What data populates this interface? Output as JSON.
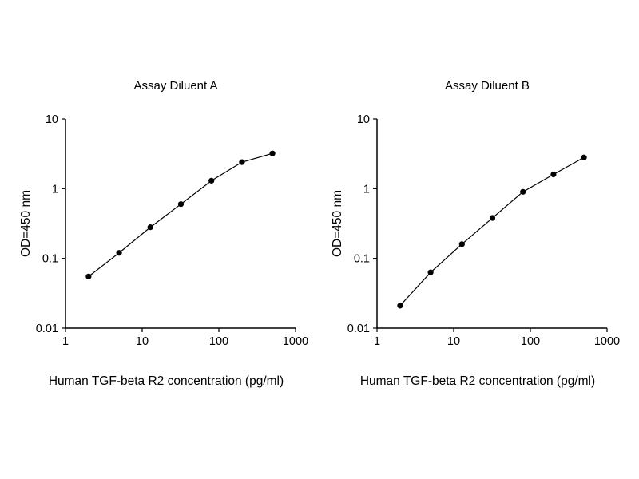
{
  "page": {
    "background": "#ffffff",
    "foreground": "#000000"
  },
  "chart_data": [
    {
      "type": "line",
      "title": "Assay Diluent A",
      "xlabel": "Human TGF-beta R2 concentration (pg/ml)",
      "ylabel": "OD=450 nm",
      "xscale": "log",
      "yscale": "log",
      "xlim": [
        1,
        1000
      ],
      "ylim": [
        0.01,
        10
      ],
      "xticks": [
        1,
        10,
        100,
        1000
      ],
      "yticks": [
        0.01,
        0.1,
        1,
        10
      ],
      "grid": false,
      "legend": "none",
      "x": [
        2,
        5,
        12.8,
        32,
        80,
        200,
        500
      ],
      "y": [
        0.055,
        0.12,
        0.28,
        0.6,
        1.3,
        2.4,
        3.2
      ],
      "line_color": "#000000",
      "marker_color": "#000000",
      "marker": "circle"
    },
    {
      "type": "line",
      "title": "Assay Diluent B",
      "xlabel": "Human TGF-beta R2 concentration (pg/ml)",
      "ylabel": "OD=450 nm",
      "xscale": "log",
      "yscale": "log",
      "xlim": [
        1,
        1000
      ],
      "ylim": [
        0.01,
        10
      ],
      "xticks": [
        1,
        10,
        100,
        1000
      ],
      "yticks": [
        0.01,
        0.1,
        1,
        10
      ],
      "grid": false,
      "legend": "none",
      "x": [
        2,
        5,
        12.8,
        32,
        80,
        200,
        500
      ],
      "y": [
        0.021,
        0.063,
        0.16,
        0.38,
        0.9,
        1.6,
        2.8
      ],
      "line_color": "#000000",
      "marker_color": "#000000",
      "marker": "circle"
    }
  ]
}
